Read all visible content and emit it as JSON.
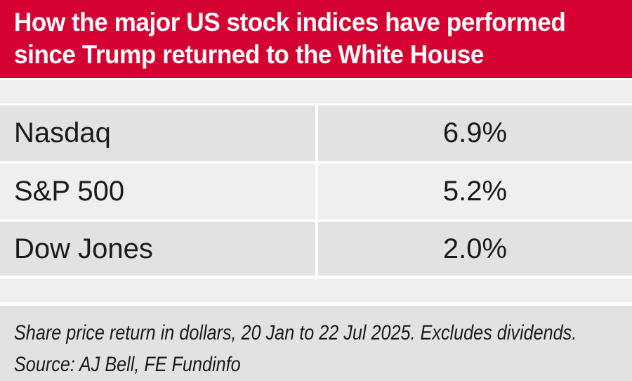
{
  "header": {
    "title_lines": [
      "How the major US stock indices have performed",
      "since Trump returned to the White House"
    ],
    "full_title": "How the major US stock indices have performed since Trump returned to the White House",
    "banner_color": "#d50032",
    "text_color": "#ffffff"
  },
  "table": {
    "rows": [
      {
        "label": "Nasdaq",
        "value": "6.9%"
      },
      {
        "label": "S&P 500",
        "value": "5.2%"
      },
      {
        "label": "Dow Jones",
        "value": "2.0%"
      }
    ],
    "row_color_dark": "#e2e2e4",
    "row_color_light": "#efeff0"
  },
  "footer": {
    "note": "Share price return in dollars, 20 Jan to 22 Jul 2025. Excludes dividends.",
    "source": "Source: AJ Bell, FE Fundinfo"
  },
  "chart_data": {
    "type": "table",
    "title": "How the major US stock indices have performed since Trump returned to the White House",
    "categories": [
      "Nasdaq",
      "S&P 500",
      "Dow Jones"
    ],
    "values": [
      6.9,
      5.2,
      2.0
    ],
    "value_labels": [
      "6.9%",
      "5.2%",
      "2.0%"
    ],
    "unit": "%",
    "note": "Share price return in dollars, 20 Jan to 22 Jul 2025. Excludes dividends.",
    "source": "AJ Bell, FE Fundinfo"
  }
}
